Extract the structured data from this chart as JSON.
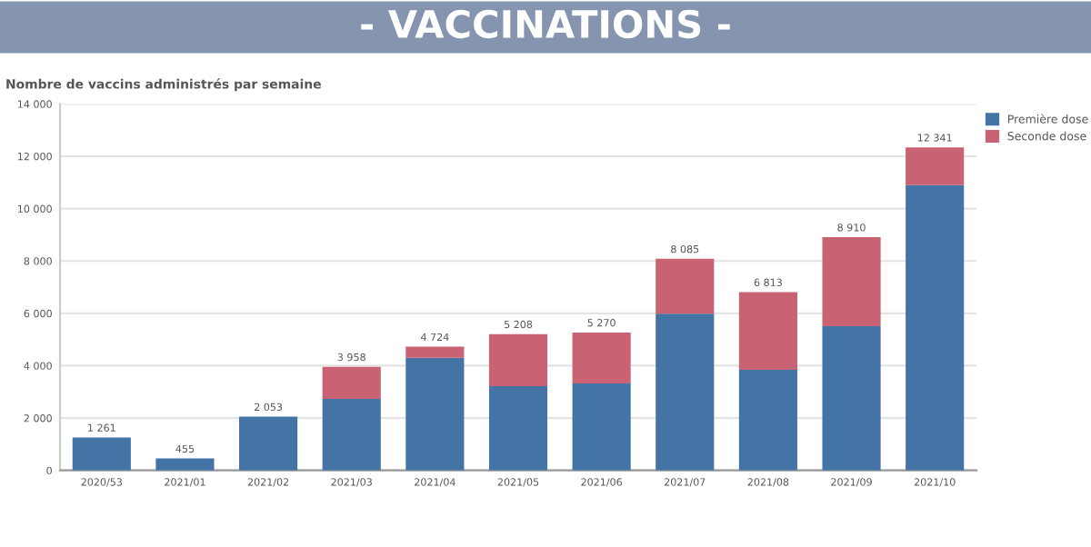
{
  "chart_data": {
    "type": "bar",
    "title": "- VACCINATIONS -",
    "subtitle": "Nombre de vaccins administrés par semaine",
    "categories": [
      "2020/53",
      "2021/01",
      "2021/02",
      "2021/03",
      "2021/04",
      "2021/05",
      "2021/06",
      "2021/07",
      "2021/08",
      "2021/09",
      "2021/10"
    ],
    "stacked": true,
    "series": [
      {
        "name": "Première dose",
        "color": "#4474a6",
        "values": [
          1261,
          455,
          2053,
          2736,
          4300,
          3220,
          3320,
          5990,
          3840,
          5510,
          10900
        ]
      },
      {
        "name": "Seconde dose",
        "color": "#c96272",
        "values": [
          null,
          null,
          null,
          1222,
          424,
          1988,
          1950,
          2095,
          2973,
          3400,
          1441
        ]
      }
    ],
    "totals": [
      "1 261",
      "455",
      "2 053",
      "3 958",
      "4 724",
      "5 208",
      "5 270",
      "8 085",
      "6 813",
      "8 910",
      "12 341"
    ],
    "ylim": [
      0,
      14000
    ],
    "yticks": [
      {
        "value": 0,
        "label": "0"
      },
      {
        "value": 2000,
        "label": "2 000"
      },
      {
        "value": 4000,
        "label": "4 000"
      },
      {
        "value": 6000,
        "label": "6 000"
      },
      {
        "value": 8000,
        "label": "8 000"
      },
      {
        "value": 10000,
        "label": "10 000"
      },
      {
        "value": 12000,
        "label": "12 000"
      },
      {
        "value": 14000,
        "label": "14 000"
      }
    ],
    "grid": "y",
    "legend": "top right"
  }
}
